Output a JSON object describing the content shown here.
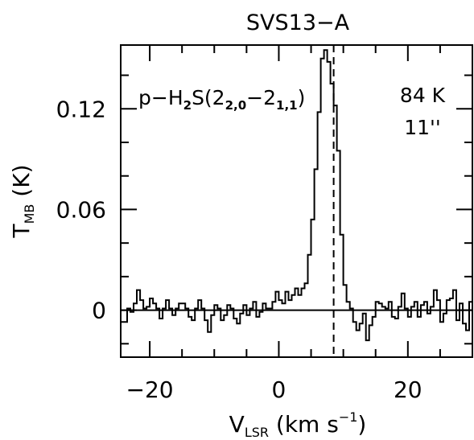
{
  "chart_data": {
    "type": "line",
    "title": "SVS13−A",
    "xlabel": {
      "base": "V",
      "sub": "LSR",
      "rest": " (km s",
      "sup": "−1",
      "close": ")"
    },
    "ylabel": {
      "base": "T",
      "sub": "MB",
      "rest": " (K)"
    },
    "xlim": [
      -24.5,
      30
    ],
    "ylim": [
      -0.028,
      0.158
    ],
    "x_ticks": [
      -20,
      0,
      20
    ],
    "x_tick_labels": [
      "−20",
      "0",
      "20"
    ],
    "y_ticks": [
      0,
      0.06,
      0.12
    ],
    "y_tick_labels": [
      "0",
      "0.06",
      "0.12"
    ],
    "grid": false,
    "annotations": {
      "line_name": {
        "prefix": "p−H",
        "h_sub": "2",
        "mid": "S(2",
        "s1": "2,0",
        "dash": "−2",
        "s2": "1,1",
        "close": ")"
      },
      "energy": "84 K",
      "beam": "11''"
    },
    "reference_velocity": 8.5,
    "series": [
      {
        "style": "histogram",
        "x": [
          -24.5,
          -24.0,
          -23.5,
          -23.0,
          -22.5,
          -22.0,
          -21.5,
          -21.0,
          -20.5,
          -20.0,
          -19.5,
          -19.0,
          -18.5,
          -18.0,
          -17.5,
          -17.0,
          -16.5,
          -16.0,
          -15.5,
          -15.0,
          -14.5,
          -14.0,
          -13.5,
          -13.0,
          -12.5,
          -12.0,
          -11.5,
          -11.0,
          -10.5,
          -10.0,
          -9.5,
          -9.0,
          -8.5,
          -8.0,
          -7.5,
          -7.0,
          -6.5,
          -6.0,
          -5.5,
          -5.0,
          -4.5,
          -4.0,
          -3.5,
          -3.0,
          -2.5,
          -2.0,
          -1.5,
          -1.0,
          -0.5,
          0.0,
          0.5,
          1.0,
          1.5,
          2.0,
          2.5,
          3.0,
          3.5,
          4.0,
          4.5,
          5.0,
          5.5,
          6.0,
          6.5,
          7.0,
          7.5,
          8.0,
          8.5,
          9.0,
          9.5,
          10.0,
          10.5,
          11.0,
          11.5,
          12.0,
          12.5,
          13.0,
          13.5,
          14.0,
          14.5,
          15.0,
          15.5,
          16.0,
          16.5,
          17.0,
          17.5,
          18.0,
          18.5,
          19.0,
          19.5,
          20.0,
          20.5,
          21.0,
          21.5,
          22.0,
          22.5,
          23.0,
          23.5,
          24.0,
          24.5,
          25.0,
          25.5,
          26.0,
          26.5,
          27.0,
          27.5,
          28.0,
          28.5,
          29.0,
          29.5
        ],
        "values": [
          -0.007,
          -0.007,
          0.001,
          -0.001,
          0.004,
          0.012,
          0.006,
          0.001,
          0.002,
          0.007,
          0.004,
          0.001,
          -0.005,
          0.001,
          0.006,
          0.001,
          -0.003,
          0.001,
          0.004,
          0.004,
          0.001,
          -0.004,
          -0.006,
          0.001,
          0.006,
          0.001,
          -0.006,
          -0.013,
          -0.003,
          0.003,
          0.001,
          -0.006,
          -0.003,
          0.003,
          0.001,
          -0.005,
          -0.008,
          -0.002,
          0.003,
          -0.003,
          0.001,
          0.005,
          -0.004,
          -0.001,
          0.004,
          0.001,
          0.001,
          0.005,
          0.011,
          0.006,
          0.004,
          0.011,
          0.006,
          0.009,
          0.013,
          0.009,
          0.013,
          0.016,
          0.033,
          0.054,
          0.084,
          0.118,
          0.15,
          0.155,
          0.148,
          0.135,
          0.122,
          0.095,
          0.045,
          0.015,
          0.005,
          0.001,
          -0.007,
          -0.012,
          -0.008,
          -0.002,
          -0.018,
          -0.009,
          -0.004,
          0.005,
          0.004,
          0.002,
          0.001,
          0.005,
          -0.004,
          -0.005,
          0.002,
          0.01,
          0.001,
          -0.004,
          0.002,
          0.005,
          -0.004,
          0.003,
          0.005,
          -0.002,
          0.002,
          0.012,
          0.006,
          -0.007,
          -0.002,
          0.006,
          0.007,
          0.012,
          -0.006,
          0.004,
          -0.008,
          -0.012,
          0.005
        ]
      }
    ]
  }
}
